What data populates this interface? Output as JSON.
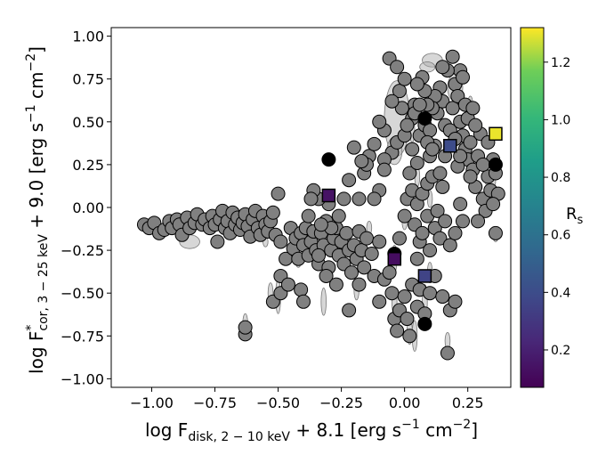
{
  "chart_data": {
    "type": "scatter",
    "xlabel": {
      "prefix": "log F",
      "sub": "disk, 2 − 10 keV",
      "suffix": " + 8.1  [erg s",
      "exp1": "−1",
      "mid": " cm",
      "exp2": "−2",
      "end": "]"
    },
    "ylabel": {
      "prefix": "log F",
      "sup": "*",
      "sub": "cor, 3 − 25 keV",
      "suffix": " + 9.0  [erg s",
      "exp1": "−1",
      "mid": " cm",
      "exp2": "−2",
      "end": "]"
    },
    "xlim": [
      -1.16,
      0.42
    ],
    "ylim": [
      -1.05,
      1.05
    ],
    "x_ticks": [
      -1.0,
      -0.75,
      -0.5,
      -0.25,
      0.0,
      0.25
    ],
    "x_tick_labels": [
      "−1.00",
      "−0.75",
      "−0.50",
      "−0.25",
      "0.00",
      "0.25"
    ],
    "y_ticks": [
      -1.0,
      -0.75,
      -0.5,
      -0.25,
      0.0,
      0.25,
      0.5,
      0.75,
      1.0
    ],
    "y_tick_labels": [
      "−1.00",
      "−0.75",
      "−0.50",
      "−0.25",
      "0.00",
      "0.25",
      "0.50",
      "0.75",
      "1.00"
    ],
    "grid": false,
    "colorbar": {
      "label": "R",
      "label_sub": "s",
      "min": 0.07,
      "max": 1.32,
      "ticks": [
        0.2,
        0.4,
        0.6,
        0.8,
        1.0,
        1.2
      ],
      "tick_labels": [
        "0.2",
        "0.4",
        "0.6",
        "0.8",
        "1.0",
        "1.2"
      ],
      "colormap": "viridis"
    },
    "colors": {
      "gray_point": "#808080",
      "black_point": "#000000",
      "error_ellipse": "#b0b0b0"
    },
    "error_ellipses": [
      [
        -0.03,
        0.52,
        0.05,
        0.22
      ],
      [
        0.2,
        0.7,
        0.03,
        0.08
      ],
      [
        -0.04,
        0.33,
        0.03,
        0.08
      ],
      [
        0.11,
        0.86,
        0.04,
        0.04
      ],
      [
        0.09,
        0.82,
        0.03,
        0.03
      ],
      [
        -1.02,
        -0.1,
        0.03,
        0.03
      ],
      [
        -0.92,
        -0.11,
        0.04,
        0.04
      ],
      [
        -0.85,
        -0.2,
        0.04,
        0.04
      ],
      [
        -0.7,
        -0.08,
        0.03,
        0.03
      ],
      [
        -0.5,
        -0.52,
        0.01,
        0.1
      ],
      [
        -0.53,
        -0.5,
        0.01,
        0.06
      ],
      [
        -0.63,
        -0.68,
        0.01,
        0.06
      ],
      [
        -0.32,
        -0.55,
        0.01,
        0.08
      ],
      [
        -0.19,
        -0.48,
        0.01,
        0.06
      ],
      [
        -0.04,
        -0.3,
        0.01,
        0.08
      ],
      [
        -0.04,
        -0.55,
        0.01,
        0.08
      ],
      [
        0.02,
        -0.72,
        0.01,
        0.08
      ],
      [
        0.04,
        -0.75,
        0.01,
        0.09
      ],
      [
        0.08,
        -0.55,
        0.01,
        0.1
      ],
      [
        0.1,
        -0.38,
        0.01,
        0.06
      ],
      [
        0.17,
        -0.78,
        0.01,
        0.05
      ],
      [
        0.05,
        0.18,
        0.01,
        0.06
      ],
      [
        0.03,
        0.45,
        0.01,
        0.07
      ],
      [
        0.0,
        -0.08,
        0.01,
        0.05
      ],
      [
        -0.38,
        -0.2,
        0.01,
        0.04
      ],
      [
        -0.42,
        -0.32,
        0.01,
        0.03
      ],
      [
        -0.55,
        -0.2,
        0.01,
        0.03
      ],
      [
        0.34,
        0.15,
        0.02,
        0.04
      ],
      [
        0.36,
        -0.17,
        0.01,
        0.03
      ],
      [
        0.26,
        0.6,
        0.01,
        0.05
      ],
      [
        0.1,
        0.05,
        0.01,
        0.05
      ],
      [
        -0.14,
        -0.12,
        0.01,
        0.04
      ]
    ],
    "gray_points": [
      [
        -1.03,
        -0.1
      ],
      [
        -1.01,
        -0.12
      ],
      [
        -0.99,
        -0.09
      ],
      [
        -0.97,
        -0.15
      ],
      [
        -0.95,
        -0.13
      ],
      [
        -0.93,
        -0.08
      ],
      [
        -0.92,
        -0.12
      ],
      [
        -0.9,
        -0.07
      ],
      [
        -0.89,
        -0.1
      ],
      [
        -0.88,
        -0.16
      ],
      [
        -0.86,
        -0.06
      ],
      [
        -0.85,
        -0.12
      ],
      [
        -0.83,
        -0.09
      ],
      [
        -0.82,
        -0.04
      ],
      [
        -0.8,
        -0.1
      ],
      [
        -0.79,
        -0.07
      ],
      [
        -0.77,
        -0.12
      ],
      [
        -0.76,
        -0.05
      ],
      [
        -0.75,
        -0.1
      ],
      [
        -0.74,
        -0.2
      ],
      [
        -0.73,
        -0.07
      ],
      [
        -0.72,
        -0.02
      ],
      [
        -0.71,
        -0.12
      ],
      [
        -0.7,
        -0.08
      ],
      [
        -0.69,
        -0.15
      ],
      [
        -0.68,
        -0.03
      ],
      [
        -0.67,
        -0.1
      ],
      [
        -0.66,
        -0.06
      ],
      [
        -0.65,
        -0.13
      ],
      [
        -0.64,
        -0.09
      ],
      [
        -0.63,
        -0.04
      ],
      [
        -0.62,
        -0.11
      ],
      [
        -0.61,
        -0.17
      ],
      [
        -0.6,
        -0.07
      ],
      [
        -0.59,
        -0.02
      ],
      [
        -0.58,
        -0.12
      ],
      [
        -0.57,
        -0.16
      ],
      [
        -0.56,
        -0.05
      ],
      [
        -0.55,
        -0.1
      ],
      [
        -0.54,
        -0.14
      ],
      [
        -0.53,
        -0.08
      ],
      [
        -0.52,
        -0.03
      ],
      [
        -0.51,
        -0.16
      ],
      [
        -0.5,
        0.08
      ],
      [
        -0.49,
        -0.2
      ],
      [
        -0.63,
        -0.74
      ],
      [
        -0.63,
        -0.7
      ],
      [
        -0.52,
        -0.55
      ],
      [
        -0.49,
        -0.5
      ],
      [
        -0.49,
        -0.4
      ],
      [
        -0.47,
        -0.3
      ],
      [
        -0.45,
        -0.12
      ],
      [
        -0.44,
        -0.24
      ],
      [
        -0.43,
        -0.18
      ],
      [
        -0.42,
        -0.3
      ],
      [
        -0.41,
        -0.15
      ],
      [
        -0.4,
        -0.22
      ],
      [
        -0.39,
        -0.12
      ],
      [
        -0.38,
        -0.28
      ],
      [
        -0.37,
        -0.2
      ],
      [
        -0.36,
        -0.14
      ],
      [
        -0.35,
        -0.25
      ],
      [
        -0.34,
        -0.33
      ],
      [
        -0.33,
        -0.15
      ],
      [
        -0.32,
        -0.22
      ],
      [
        -0.31,
        -0.08
      ],
      [
        -0.3,
        -0.35
      ],
      [
        -0.29,
        -0.25
      ],
      [
        -0.28,
        -0.18
      ],
      [
        -0.27,
        -0.12
      ],
      [
        -0.26,
        -0.28
      ],
      [
        -0.25,
        -0.2
      ],
      [
        -0.24,
        -0.33
      ],
      [
        -0.23,
        -0.15
      ],
      [
        -0.22,
        -0.25
      ],
      [
        -0.21,
        -0.38
      ],
      [
        -0.2,
        -0.22
      ],
      [
        -0.19,
        -0.3
      ],
      [
        -0.18,
        -0.14
      ],
      [
        -0.17,
        -0.25
      ],
      [
        -0.16,
        -0.35
      ],
      [
        -0.15,
        -0.18
      ],
      [
        -0.13,
        -0.27
      ],
      [
        -0.12,
        -0.4
      ],
      [
        -0.1,
        -0.2
      ],
      [
        -0.46,
        -0.45
      ],
      [
        -0.41,
        -0.48
      ],
      [
        -0.4,
        -0.55
      ],
      [
        -0.34,
        -0.28
      ],
      [
        -0.31,
        -0.4
      ],
      [
        -0.27,
        -0.45
      ],
      [
        -0.22,
        -0.6
      ],
      [
        -0.18,
        -0.45
      ],
      [
        -0.1,
        -0.55
      ],
      [
        -0.08,
        -0.42
      ],
      [
        -0.06,
        -0.38
      ],
      [
        -0.05,
        -0.5
      ],
      [
        -0.04,
        -0.65
      ],
      [
        -0.03,
        -0.72
      ],
      [
        -0.02,
        -0.6
      ],
      [
        0.0,
        -0.52
      ],
      [
        0.01,
        -0.65
      ],
      [
        0.02,
        -0.75
      ],
      [
        0.03,
        -0.45
      ],
      [
        0.05,
        -0.58
      ],
      [
        0.06,
        -0.48
      ],
      [
        0.08,
        -0.62
      ],
      [
        0.1,
        -0.5
      ],
      [
        0.12,
        -0.4
      ],
      [
        0.15,
        -0.52
      ],
      [
        0.18,
        -0.6
      ],
      [
        0.2,
        -0.55
      ],
      [
        0.17,
        -0.85
      ],
      [
        0.05,
        -0.3
      ],
      [
        0.06,
        -0.2
      ],
      [
        0.04,
        -0.1
      ],
      [
        0.07,
        -0.15
      ],
      [
        0.09,
        -0.05
      ],
      [
        0.1,
        -0.25
      ],
      [
        0.12,
        -0.12
      ],
      [
        0.13,
        -0.02
      ],
      [
        0.14,
        -0.18
      ],
      [
        0.16,
        -0.08
      ],
      [
        0.18,
        -0.22
      ],
      [
        0.2,
        -0.15
      ],
      [
        0.22,
        0.02
      ],
      [
        0.23,
        -0.08
      ],
      [
        0.0,
        -0.05
      ],
      [
        -0.02,
        -0.18
      ],
      [
        0.01,
        0.05
      ],
      [
        0.03,
        0.1
      ],
      [
        0.05,
        0.02
      ],
      [
        0.07,
        0.08
      ],
      [
        0.09,
        0.14
      ],
      [
        0.11,
        0.18
      ],
      [
        0.02,
        0.2
      ],
      [
        -0.05,
        0.32
      ],
      [
        -0.08,
        0.28
      ],
      [
        -0.03,
        0.38
      ],
      [
        0.0,
        0.42
      ],
      [
        0.03,
        0.34
      ],
      [
        0.05,
        0.26
      ],
      [
        0.06,
        0.42
      ],
      [
        0.08,
        0.48
      ],
      [
        0.1,
        0.3
      ],
      [
        0.12,
        0.36
      ],
      [
        0.13,
        0.55
      ],
      [
        0.15,
        0.62
      ],
      [
        0.16,
        0.48
      ],
      [
        0.18,
        0.45
      ],
      [
        0.19,
        0.58
      ],
      [
        0.2,
        0.72
      ],
      [
        0.21,
        0.65
      ],
      [
        0.22,
        0.5
      ],
      [
        0.23,
        0.42
      ],
      [
        0.24,
        0.34
      ],
      [
        0.25,
        0.28
      ],
      [
        0.26,
        0.38
      ],
      [
        0.27,
        0.22
      ],
      [
        0.28,
        0.12
      ],
      [
        0.29,
        0.3
      ],
      [
        0.3,
        0.43
      ],
      [
        0.31,
        0.05
      ],
      [
        0.32,
        -0.02
      ],
      [
        0.33,
        0.18
      ],
      [
        0.34,
        0.1
      ],
      [
        0.35,
        0.28
      ],
      [
        0.36,
        0.2
      ],
      [
        0.36,
        -0.15
      ],
      [
        0.37,
        0.08
      ],
      [
        0.24,
        0.6
      ],
      [
        0.25,
        0.52
      ],
      [
        0.28,
        0.48
      ],
      [
        0.27,
        0.58
      ],
      [
        0.22,
        0.8
      ],
      [
        0.23,
        0.76
      ],
      [
        0.19,
        0.88
      ],
      [
        0.17,
        0.8
      ],
      [
        0.15,
        0.82
      ],
      [
        0.14,
        0.7
      ],
      [
        0.12,
        0.65
      ],
      [
        0.11,
        0.58
      ],
      [
        0.1,
        0.45
      ],
      [
        0.09,
        0.6
      ],
      [
        0.08,
        0.68
      ],
      [
        0.07,
        0.76
      ],
      [
        0.05,
        0.72
      ],
      [
        0.04,
        0.6
      ],
      [
        0.03,
        0.52
      ],
      [
        0.01,
        0.48
      ],
      [
        -0.01,
        0.58
      ],
      [
        -0.02,
        0.68
      ],
      [
        -0.05,
        0.62
      ],
      [
        -0.08,
        0.22
      ],
      [
        -0.1,
        0.1
      ],
      [
        -0.12,
        0.05
      ],
      [
        -0.14,
        0.3
      ],
      [
        -0.16,
        0.2
      ],
      [
        -0.2,
        0.35
      ],
      [
        -0.22,
        0.16
      ],
      [
        -0.24,
        0.05
      ],
      [
        -0.26,
        -0.05
      ],
      [
        -0.29,
        -0.12
      ],
      [
        -0.3,
        0.02
      ],
      [
        -0.33,
        -0.1
      ],
      [
        -0.34,
        0.05
      ],
      [
        -0.36,
        0.1
      ],
      [
        -0.37,
        0.05
      ],
      [
        -0.38,
        -0.05
      ],
      [
        -0.18,
        0.05
      ],
      [
        -0.15,
        0.25
      ],
      [
        -0.17,
        0.27
      ],
      [
        -0.12,
        0.37
      ],
      [
        -0.08,
        0.45
      ],
      [
        -0.1,
        0.5
      ],
      [
        -0.06,
        0.87
      ],
      [
        -0.03,
        0.82
      ],
      [
        0.0,
        0.75
      ],
      [
        0.04,
        0.55
      ],
      [
        0.06,
        0.6
      ],
      [
        0.09,
        0.38
      ],
      [
        0.11,
        0.34
      ],
      [
        0.14,
        0.2
      ],
      [
        0.15,
        0.12
      ],
      [
        0.16,
        0.3
      ],
      [
        0.2,
        0.4
      ],
      [
        0.21,
        0.24
      ],
      [
        0.22,
        0.3
      ],
      [
        0.26,
        0.18
      ],
      [
        0.29,
        -0.08
      ],
      [
        0.31,
        0.25
      ],
      [
        0.33,
        0.38
      ],
      [
        0.35,
        0.02
      ]
    ],
    "black_points": [
      [
        -0.3,
        0.28
      ],
      [
        0.08,
        0.52
      ],
      [
        0.36,
        0.25
      ],
      [
        -0.04,
        -0.27
      ],
      [
        0.08,
        -0.68
      ]
    ],
    "squares": [
      [
        -0.3,
        0.07,
        0.14
      ],
      [
        -0.04,
        -0.3,
        0.12
      ],
      [
        0.08,
        -0.4,
        0.36
      ],
      [
        0.18,
        0.36,
        0.4
      ],
      [
        0.36,
        0.43,
        1.3
      ]
    ]
  }
}
